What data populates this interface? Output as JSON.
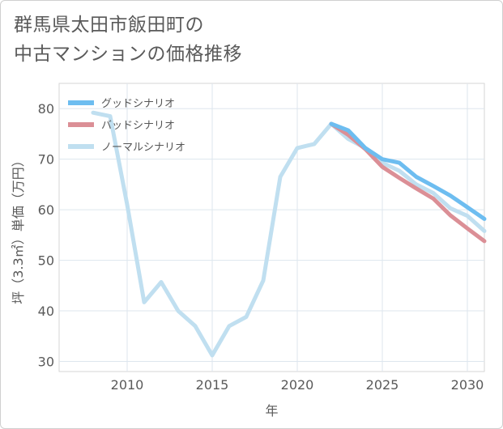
{
  "title": "群馬県太田市飯田町の\n中古マンションの価格推移",
  "chart_data": {
    "type": "line",
    "title": "群馬県太田市飯田町の中古マンションの価格推移",
    "xlabel": "年",
    "ylabel": "坪（3.3㎡）単価（万円）",
    "xlim": [
      2006,
      2031
    ],
    "ylim": [
      28,
      85
    ],
    "x_ticks": [
      2010,
      2015,
      2020,
      2025,
      2030
    ],
    "y_ticks": [
      30,
      40,
      50,
      60,
      70,
      80
    ],
    "grid": true,
    "legend_position": "top-left",
    "series": [
      {
        "name": "グッドシナリオ",
        "color": "#6dbdf0",
        "x": [
          2022,
          2023,
          2024,
          2025,
          2026,
          2027,
          2028,
          2029,
          2030,
          2031
        ],
        "y": [
          77.0,
          75.7,
          72.2,
          70.0,
          69.3,
          66.5,
          64.7,
          62.8,
          60.5,
          58.2
        ]
      },
      {
        "name": "バッドシナリオ",
        "color": "#db8f96",
        "x": [
          2022,
          2023,
          2024,
          2025,
          2026,
          2027,
          2028,
          2029,
          2030,
          2031
        ],
        "y": [
          77.0,
          74.8,
          72.0,
          68.5,
          66.3,
          64.2,
          62.2,
          58.9,
          56.3,
          53.8
        ]
      },
      {
        "name": "ノーマルシナリオ",
        "color": "#c0dff0",
        "x": [
          2008,
          2009,
          2010,
          2011,
          2012,
          2013,
          2014,
          2015,
          2016,
          2017,
          2018,
          2019,
          2020,
          2021,
          2022,
          2023,
          2024,
          2025,
          2026,
          2027,
          2028,
          2029,
          2030,
          2031
        ],
        "y": [
          79.2,
          78.5,
          61.0,
          41.7,
          45.7,
          40.0,
          37.0,
          31.2,
          37.0,
          38.8,
          46.0,
          66.5,
          72.2,
          73.0,
          77.0,
          74.0,
          72.2,
          69.3,
          67.7,
          65.0,
          63.3,
          60.3,
          58.8,
          55.8
        ]
      }
    ]
  }
}
